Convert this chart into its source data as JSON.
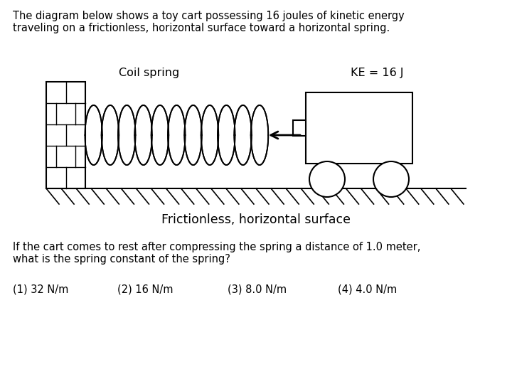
{
  "title_text": "The diagram below shows a toy cart possessing 16 joules of kinetic energy\ntraveling on a frictionless, horizontal surface toward a horizontal spring.",
  "coil_label": "Coil spring",
  "ke_label": "KE = 16 J",
  "surface_label": "Frictionless, horizontal surface",
  "question_text": "If the cart comes to rest after compressing the spring a distance of 1.0 meter,\nwhat is the spring constant of the spring?",
  "choices_1": "(1) 32 N/m",
  "choices_2": "(2) 16 N/m",
  "choices_3": "(3) 8.0 N/m",
  "choices_4": "(4) 4.0 N/m",
  "bg_color": "#ffffff",
  "line_color": "#000000",
  "title_fontsize": 10.5,
  "label_fontsize": 11.5,
  "surface_fontsize": 12.5,
  "question_fontsize": 10.5
}
